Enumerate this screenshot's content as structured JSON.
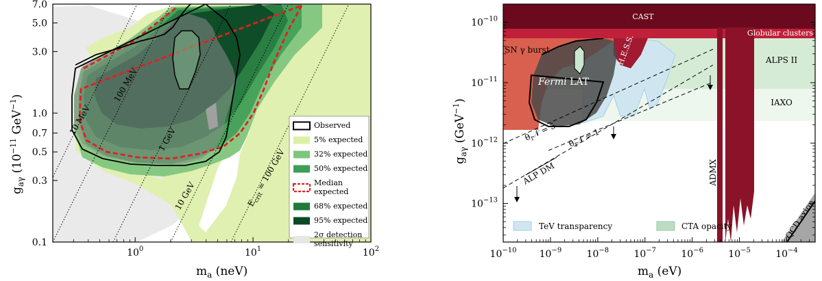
{
  "chart_data": [
    {
      "type": "area",
      "xlabel": "m_a (neV)",
      "ylabel": "g_aγ (10^-11 GeV^-1)",
      "xscale": "log",
      "yscale": "log",
      "xlim": [
        0.2,
        100
      ],
      "ylim": [
        0.1,
        7.0
      ],
      "x_ticks": [
        {
          "value": 1,
          "label": "10^0"
        },
        {
          "value": 10,
          "label": "10^1"
        },
        {
          "value": 100,
          "label": "10^2"
        }
      ],
      "y_ticks": [
        {
          "value": 0.1,
          "label": "0.1"
        },
        {
          "value": 0.3,
          "label": "0.3"
        },
        {
          "value": 0.5,
          "label": "0.5"
        },
        {
          "value": 0.7,
          "label": "0.7"
        },
        {
          "value": 1.0,
          "label": "1.0"
        },
        {
          "value": 3.0,
          "label": "3.0"
        },
        {
          "value": 5.0,
          "label": "5.0"
        },
        {
          "value": 7.0,
          "label": "7.0"
        }
      ],
      "critical_energy_lines": [
        {
          "label": "10 MeV",
          "x_at_ymin": 0.2,
          "x_at_ymax": 0.2
        },
        {
          "label": "100 MeV",
          "x_at_ymin": 0.2,
          "x_at_ymax": 2.0
        },
        {
          "label": "1 GeV",
          "x_at_ymin": 0.65,
          "x_at_ymax": 6.5
        },
        {
          "label": "10 GeV",
          "x_at_ymin": 2.0,
          "x_at_ymax": 20.0
        },
        {
          "label": "E_crit = 100 GeV",
          "x_at_ymin": 6.5,
          "x_at_ymax": 65.0
        }
      ],
      "legend": {
        "position": "lower-right",
        "entries": [
          {
            "label": "Observed",
            "color": "#000000",
            "style": "outline"
          },
          {
            "label": "5% expected",
            "color": "#dcefa8"
          },
          {
            "label": "32% expected",
            "color": "#7fc57c"
          },
          {
            "label": "50% expected",
            "color": "#3e9e55"
          },
          {
            "label": "Median expected",
            "color": "#e02020",
            "style": "dashed"
          },
          {
            "label": "68% expected",
            "color": "#1f7a3c"
          },
          {
            "label": "95% expected",
            "color": "#0c4a26"
          },
          {
            "label": "2σ detection sensitivity",
            "color": "#e6e6e6"
          }
        ]
      }
    },
    {
      "type": "area",
      "xlabel": "m_a (eV)",
      "ylabel": "g_aγ (GeV^-1)",
      "xscale": "log",
      "yscale": "log",
      "xlim": [
        1e-10,
        0.0004
      ],
      "ylim": [
        2.3e-14,
        2e-10
      ],
      "x_ticks": [
        {
          "value": 1e-10,
          "label": "10^-10"
        },
        {
          "value": 1e-09,
          "label": "10^-9"
        },
        {
          "value": 1e-08,
          "label": "10^-8"
        },
        {
          "value": 1e-07,
          "label": "10^-7"
        },
        {
          "value": 1e-06,
          "label": "10^-6"
        },
        {
          "value": 1e-05,
          "label": "10^-5"
        },
        {
          "value": 0.0001,
          "label": "10^-4"
        }
      ],
      "y_ticks": [
        {
          "value": 1e-13,
          "label": "10^-13"
        },
        {
          "value": 1e-12,
          "label": "10^-12"
        },
        {
          "value": 1e-11,
          "label": "10^-11"
        },
        {
          "value": 1e-10,
          "label": "10^-10"
        }
      ],
      "regions": [
        {
          "label": "CAST",
          "g_min": 6.6e-11,
          "color": "#6b0a1e"
        },
        {
          "label": "Globular clusters",
          "g_min": 6.6e-11,
          "color": "#c0203a"
        },
        {
          "label": "SN γ burst",
          "color": "#d9604e"
        },
        {
          "label": "H.E.S.S.",
          "color": "#9e1a30"
        },
        {
          "label": "Fermi LAT",
          "color": "#555555"
        },
        {
          "label": "ALPS II",
          "g_min": 2e-11,
          "color": "#dcefdc"
        },
        {
          "label": "IAXO",
          "g_min": 3e-12,
          "color": "#ecf6ec"
        },
        {
          "label": "ADMX",
          "color": "#8b1228"
        },
        {
          "label": "QCD axion",
          "color": "#999999"
        }
      ],
      "lines": [
        {
          "label": "θ_I N = 5",
          "style": "dashed"
        },
        {
          "label": "θ_I N = 1",
          "style": "dashed"
        },
        {
          "label": "ALP DM",
          "style": "dashed"
        }
      ],
      "legend": {
        "position": "bottom",
        "entries": [
          {
            "label": "TeV transparency",
            "color": "#cfe6f0"
          },
          {
            "label": "CTA opacity",
            "color": "#bcdcc4"
          }
        ]
      }
    }
  ]
}
